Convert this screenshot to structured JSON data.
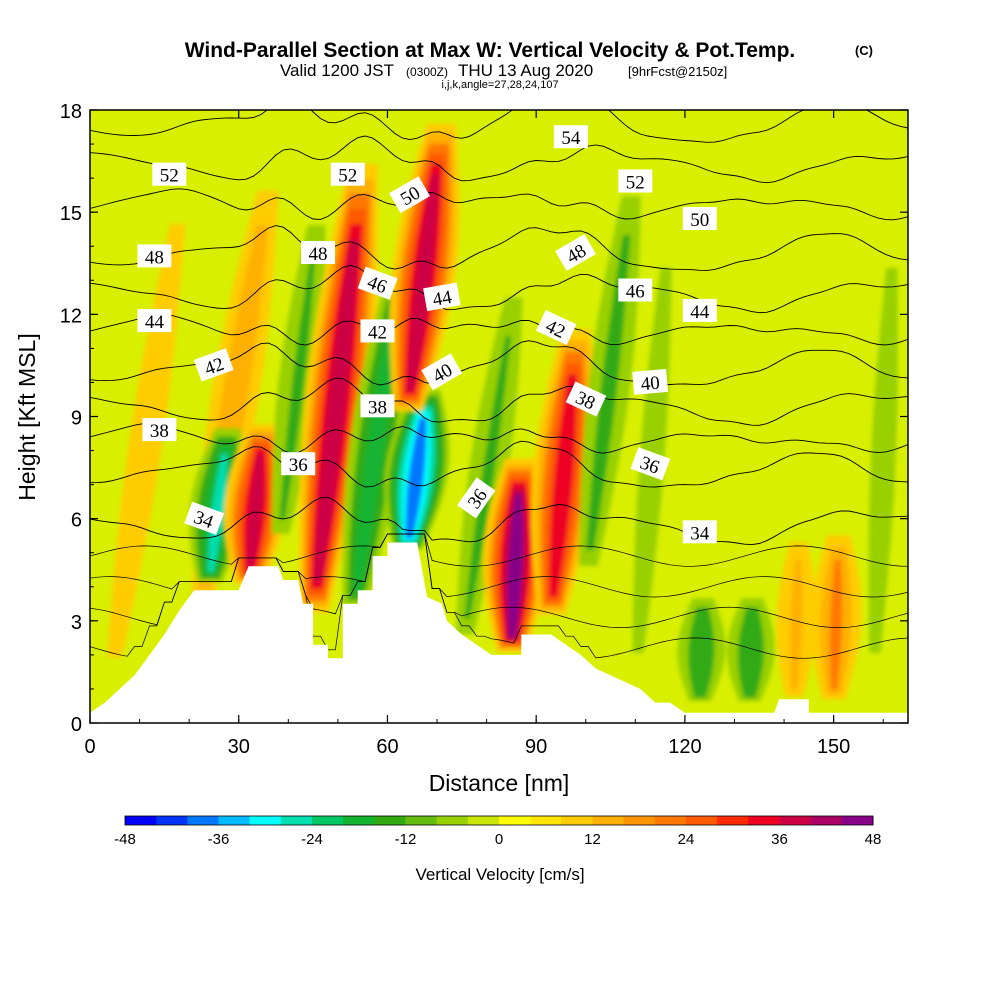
{
  "header": {
    "title_main": "Wind-Parallel Section at Max W: Vertical Velocity & Pot.Temp.",
    "title_mark": "(C)",
    "sub_valid": "Valid 1200 JST",
    "sub_zulu": "(0300Z)",
    "sub_date": "THU 13 Aug 2020",
    "sub_fcst": "[9hrFcst@2150z]",
    "line3": "i,j,k,angle=27,28,24,107"
  },
  "chart_data": {
    "type": "heatmap",
    "xlabel": "Distance [nm]",
    "ylabel": "Height [Kft MSL]",
    "xlim": [
      0,
      165
    ],
    "ylim": [
      0,
      18
    ],
    "x_ticks": [
      "0",
      "30",
      "60",
      "90",
      "120",
      "150"
    ],
    "y_ticks": [
      "0",
      "3",
      "6",
      "9",
      "12",
      "15",
      "18"
    ],
    "terrain_kft": [
      [
        0,
        0.3
      ],
      [
        3,
        0.6
      ],
      [
        6,
        1.0
      ],
      [
        9,
        1.4
      ],
      [
        12,
        2.0
      ],
      [
        15,
        2.6
      ],
      [
        18,
        3.3
      ],
      [
        21,
        3.9
      ],
      [
        27,
        3.9
      ],
      [
        30,
        3.9
      ],
      [
        32,
        4.6
      ],
      [
        38,
        4.6
      ],
      [
        39,
        4.2
      ],
      [
        42,
        4.2
      ],
      [
        43,
        3.5
      ],
      [
        45,
        3.5
      ],
      [
        45,
        2.3
      ],
      [
        48,
        2.3
      ],
      [
        48,
        1.9
      ],
      [
        51,
        1.9
      ],
      [
        51,
        3.5
      ],
      [
        54,
        3.5
      ],
      [
        54,
        3.9
      ],
      [
        57,
        3.9
      ],
      [
        57,
        4.9
      ],
      [
        60,
        4.9
      ],
      [
        60,
        5.3
      ],
      [
        63,
        5.3
      ],
      [
        66,
        5.3
      ],
      [
        68,
        3.7
      ],
      [
        71,
        3.5
      ],
      [
        72,
        3.0
      ],
      [
        75,
        2.6
      ],
      [
        78,
        2.3
      ],
      [
        81,
        2.0
      ],
      [
        84,
        2.0
      ],
      [
        87,
        2.0
      ],
      [
        87,
        2.6
      ],
      [
        93,
        2.6
      ],
      [
        96,
        2.3
      ],
      [
        99,
        2.0
      ],
      [
        102,
        1.6
      ],
      [
        105,
        1.4
      ],
      [
        108,
        1.2
      ],
      [
        111,
        1.0
      ],
      [
        114,
        0.6
      ],
      [
        117,
        0.6
      ],
      [
        120,
        0.3
      ],
      [
        138,
        0.3
      ],
      [
        139,
        0.7
      ],
      [
        145,
        0.7
      ],
      [
        145,
        0.3
      ],
      [
        165,
        0.3
      ]
    ],
    "w_ridges": [
      {
        "kind": "up",
        "x": 4,
        "y0": 1,
        "y1": 17,
        "tilt": 1.0,
        "amp": 12
      },
      {
        "kind": "up",
        "x": 22,
        "y0": 3,
        "y1": 17,
        "tilt": 1.1,
        "amp": 18
      },
      {
        "kind": "down",
        "x": 24,
        "y0": 4,
        "y1": 9,
        "tilt": 0.8,
        "amp": -26
      },
      {
        "kind": "up",
        "x": 32,
        "y0": 4,
        "y1": 9,
        "tilt": 0.6,
        "amp": 38
      },
      {
        "kind": "down",
        "x": 38,
        "y0": 5,
        "y1": 16,
        "tilt": 0.8,
        "amp": -14
      },
      {
        "kind": "up",
        "x": 45,
        "y0": 3,
        "y1": 17,
        "tilt": 0.75,
        "amp": 42
      },
      {
        "kind": "down",
        "x": 53,
        "y0": 3,
        "y1": 14,
        "tilt": 0.9,
        "amp": -22
      },
      {
        "kind": "down",
        "x": 64,
        "y0": 5,
        "y1": 10,
        "tilt": 0.8,
        "amp": -40
      },
      {
        "kind": "up",
        "x": 64,
        "y0": 9,
        "y1": 18,
        "tilt": 0.8,
        "amp": 40
      },
      {
        "kind": "down",
        "x": 75,
        "y0": 2,
        "y1": 14,
        "tilt": 1.0,
        "amp": -14
      },
      {
        "kind": "up",
        "x": 85,
        "y0": 2,
        "y1": 8,
        "tilt": 0.3,
        "amp": 46
      },
      {
        "kind": "up",
        "x": 93,
        "y0": 3,
        "y1": 12,
        "tilt": 0.6,
        "amp": 36
      },
      {
        "kind": "down",
        "x": 100,
        "y0": 4,
        "y1": 17,
        "tilt": 0.8,
        "amp": -15
      },
      {
        "kind": "down",
        "x": 110,
        "y0": 1,
        "y1": 16,
        "tilt": 0.5,
        "amp": -10
      },
      {
        "kind": "down",
        "x": 123,
        "y0": 0.5,
        "y1": 4,
        "tilt": 0.2,
        "amp": -18
      },
      {
        "kind": "down",
        "x": 133,
        "y0": 0.5,
        "y1": 4,
        "tilt": 0.2,
        "amp": -18
      },
      {
        "kind": "up",
        "x": 142,
        "y0": 0.5,
        "y1": 6,
        "tilt": 0.2,
        "amp": 14
      },
      {
        "kind": "up",
        "x": 150,
        "y0": 0.5,
        "y1": 6,
        "tilt": 0.2,
        "amp": 20
      },
      {
        "kind": "down",
        "x": 158,
        "y0": 1,
        "y1": 16,
        "tilt": 0.3,
        "amp": -10
      }
    ],
    "theta_levels_C": [
      {
        "level": 54,
        "base_kft": 17.6
      },
      {
        "level": 52,
        "base_kft": 16.4
      },
      {
        "level": 50,
        "base_kft": 15.2
      },
      {
        "level": 48,
        "base_kft": 13.8
      },
      {
        "level": 46,
        "base_kft": 12.6
      },
      {
        "level": 44,
        "base_kft": 11.5
      },
      {
        "level": 42,
        "base_kft": 10.4
      },
      {
        "level": 40,
        "base_kft": 9.3
      },
      {
        "level": 38,
        "base_kft": 8.3
      },
      {
        "level": 36,
        "base_kft": 7.4
      },
      {
        "level": 34,
        "base_kft": 5.8
      }
    ],
    "contour_labels": [
      {
        "text": "52",
        "x": 16,
        "y": 16.1,
        "angle": 0
      },
      {
        "text": "52",
        "x": 52,
        "y": 16.1,
        "angle": 0
      },
      {
        "text": "50",
        "x": 64.5,
        "y": 15.5,
        "angle": -30
      },
      {
        "text": "54",
        "x": 97,
        "y": 17.2,
        "angle": 0
      },
      {
        "text": "52",
        "x": 110,
        "y": 15.9,
        "angle": 0
      },
      {
        "text": "50",
        "x": 123,
        "y": 14.8,
        "angle": 0
      },
      {
        "text": "48",
        "x": 13,
        "y": 13.7,
        "angle": 0
      },
      {
        "text": "48",
        "x": 46,
        "y": 13.8,
        "angle": 0
      },
      {
        "text": "48",
        "x": 98,
        "y": 13.8,
        "angle": -30
      },
      {
        "text": "46",
        "x": 58,
        "y": 12.9,
        "angle": 20
      },
      {
        "text": "44",
        "x": 71,
        "y": 12.5,
        "angle": -10
      },
      {
        "text": "46",
        "x": 110,
        "y": 12.7,
        "angle": 0
      },
      {
        "text": "44",
        "x": 13,
        "y": 11.8,
        "angle": 0
      },
      {
        "text": "44",
        "x": 123,
        "y": 12.1,
        "angle": 0
      },
      {
        "text": "42",
        "x": 58,
        "y": 11.5,
        "angle": 0
      },
      {
        "text": "42",
        "x": 94,
        "y": 11.6,
        "angle": 25
      },
      {
        "text": "42",
        "x": 25,
        "y": 10.5,
        "angle": -20
      },
      {
        "text": "40",
        "x": 71,
        "y": 10.3,
        "angle": -30
      },
      {
        "text": "40",
        "x": 113,
        "y": 10.0,
        "angle": -5
      },
      {
        "text": "38",
        "x": 14,
        "y": 8.6,
        "angle": 0
      },
      {
        "text": "38",
        "x": 58,
        "y": 9.3,
        "angle": 0
      },
      {
        "text": "38",
        "x": 100,
        "y": 9.5,
        "angle": 25
      },
      {
        "text": "36",
        "x": 42,
        "y": 7.6,
        "angle": 0
      },
      {
        "text": "36",
        "x": 113,
        "y": 7.6,
        "angle": 20
      },
      {
        "text": "36",
        "x": 78,
        "y": 6.6,
        "angle": -55
      },
      {
        "text": "34",
        "x": 23,
        "y": 6.0,
        "angle": 20
      },
      {
        "text": "34",
        "x": 123,
        "y": 5.6,
        "angle": 0
      }
    ],
    "colorbar": {
      "label": "Vertical Velocity [cm/s]",
      "tick_labels": [
        "-48",
        "-36",
        "-24",
        "-12",
        "0",
        "12",
        "24",
        "36",
        "48"
      ],
      "colors": [
        "#0000ff",
        "#0033ff",
        "#0077ff",
        "#00bbff",
        "#00ffff",
        "#00dfb0",
        "#00c864",
        "#15b430",
        "#33aa12",
        "#66bb10",
        "#99d000",
        "#c8e600",
        "#ffff00",
        "#ffe600",
        "#ffcc00",
        "#ffb000",
        "#ff9600",
        "#ff7800",
        "#ff5a00",
        "#ff2a00",
        "#ee0022",
        "#cc0044",
        "#aa0066",
        "#880088"
      ]
    }
  }
}
